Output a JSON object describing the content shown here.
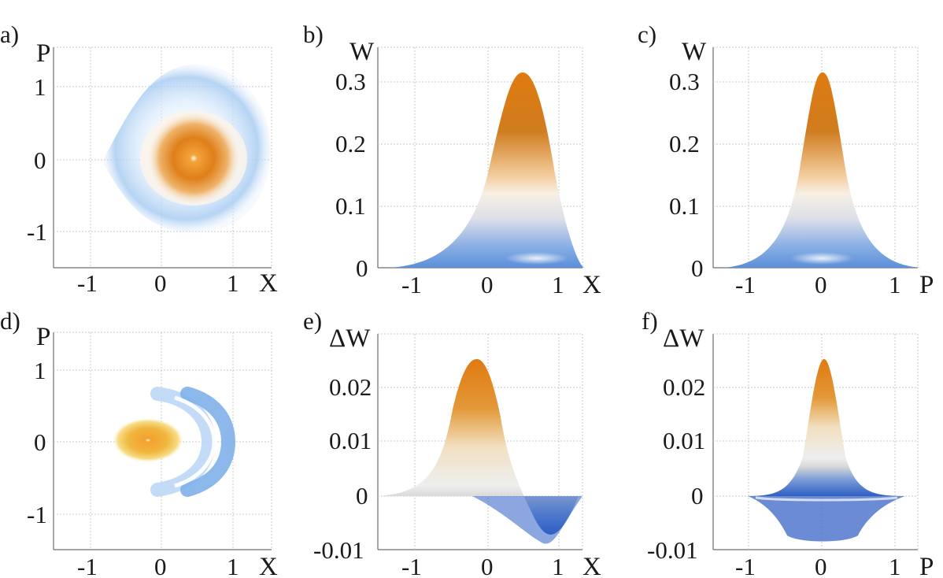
{
  "chart_data": [
    {
      "panel": "a)",
      "type": "heatmap",
      "xlabel": "X",
      "ylabel": "P",
      "xlim": [
        -1.5,
        1.5
      ],
      "ylim": [
        -1.5,
        1.5
      ],
      "xticks": [
        "-1",
        "0",
        "1"
      ],
      "yticks": [
        "1",
        "0",
        "-1"
      ],
      "peak": {
        "x": 0.45,
        "y": 0.0
      },
      "grid": true
    },
    {
      "panel": "b)",
      "type": "area",
      "xlabel": "X",
      "ylabel": "W",
      "xlim": [
        -1.5,
        1.5
      ],
      "ylim": [
        0,
        0.35
      ],
      "xticks": [
        "-1",
        "0",
        "1"
      ],
      "yticks": [
        "0.3",
        "0.2",
        "0.1",
        "0"
      ],
      "peak": {
        "x": 0.45,
        "y": 0.31
      },
      "grid": true
    },
    {
      "panel": "c)",
      "type": "area",
      "xlabel": "P",
      "ylabel": "W",
      "xlim": [
        -1.5,
        1.5
      ],
      "ylim": [
        0,
        0.35
      ],
      "xticks": [
        "-1",
        "0",
        "1"
      ],
      "yticks": [
        "0.3",
        "0.2",
        "0.1",
        "0"
      ],
      "peak": {
        "x": 0.0,
        "y": 0.31
      },
      "grid": true
    },
    {
      "panel": "d)",
      "type": "heatmap",
      "xlabel": "X",
      "ylabel": "P",
      "xlim": [
        -1.5,
        1.5
      ],
      "ylim": [
        -1.5,
        1.5
      ],
      "xticks": [
        "-1",
        "0",
        "1"
      ],
      "yticks": [
        "1",
        "0",
        "-1"
      ],
      "peak": {
        "x": -0.1,
        "y": 0.0
      },
      "grid": true
    },
    {
      "panel": "e)",
      "type": "area",
      "xlabel": "X",
      "ylabel": "ΔW",
      "xlim": [
        -1.5,
        1.5
      ],
      "ylim": [
        -0.01,
        0.03
      ],
      "xticks": [
        "-1",
        "0",
        "1"
      ],
      "yticks": [
        "0.02",
        "0.01",
        "0",
        "-0.01"
      ],
      "peak": {
        "x": -0.15,
        "y": 0.025
      },
      "trough": {
        "x": 0.7,
        "y": -0.008
      },
      "grid": true
    },
    {
      "panel": "f)",
      "type": "area",
      "xlabel": "P",
      "ylabel": "ΔW",
      "xlim": [
        -1.5,
        1.5
      ],
      "ylim": [
        -0.01,
        0.03
      ],
      "xticks": [
        "-1",
        "0",
        "1"
      ],
      "yticks": [
        "0.02",
        "0.01",
        "0",
        "-0.01"
      ],
      "peak": {
        "x": 0.0,
        "y": 0.025
      },
      "trough": {
        "x": 0.0,
        "y": -0.008
      },
      "grid": true
    }
  ],
  "colors": {
    "orange": "#e07a10",
    "orange_light": "#f2c27a",
    "cream": "#f7edd6",
    "grey_white": "#e9e9e9",
    "blue": "#3a6fc8",
    "blue_light": "#9cc4ef"
  }
}
